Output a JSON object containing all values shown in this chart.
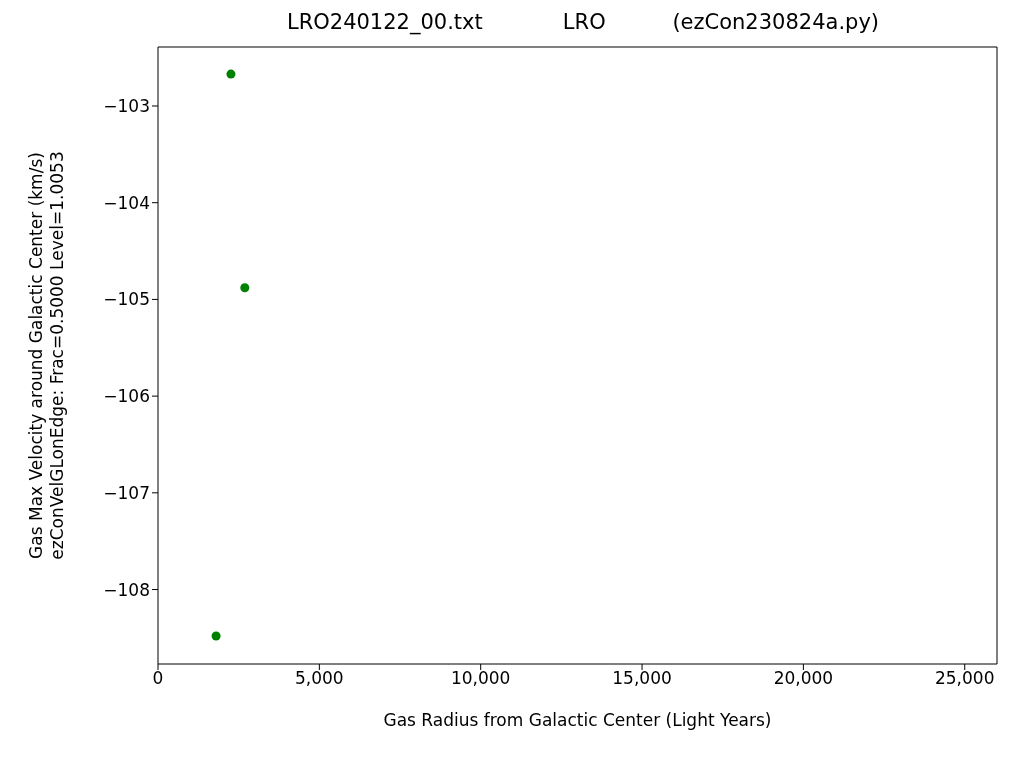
{
  "chart_data": {
    "type": "scatter",
    "title": "LRO240122_00.txt            LRO          (ezCon230824a.py)",
    "xlabel": "Gas Radius from Galactic Center (Light Years)",
    "ylabel": "Gas Max Velocity around Galactic Center (km/s)\nezConVelGLonEdge: Frac=0.5000 Level=1.0053",
    "x": [
      2260,
      2690,
      1800
    ],
    "series": [
      {
        "color": "#008000",
        "values": [
          -102.67,
          -104.88,
          -108.48
        ]
      }
    ],
    "xlim": [
      0,
      26000
    ],
    "xticks": [
      0,
      {
        "value": 5000,
        "label": "5,000"
      },
      {
        "value": 10000,
        "label": "10,000"
      },
      {
        "value": 15000,
        "label": "15,000"
      },
      {
        "value": 20000,
        "label": "20,000"
      },
      {
        "value": 25000,
        "label": "25,000"
      }
    ],
    "ylim": [
      -108.77,
      -102.39
    ],
    "yticks": [
      {
        "value": -108,
        "label": "−108"
      },
      {
        "value": -107,
        "label": "−107"
      },
      {
        "value": -106,
        "label": "−106"
      },
      {
        "value": -105,
        "label": "−105"
      },
      {
        "value": -104,
        "label": "−104"
      },
      {
        "value": -103,
        "label": "−103"
      }
    ],
    "grid": false,
    "legend": false,
    "marker": "circle"
  }
}
